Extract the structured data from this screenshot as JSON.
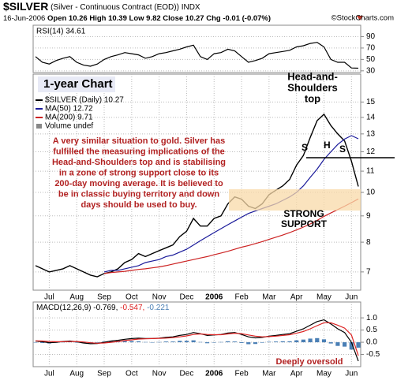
{
  "header": {
    "title": "$SILVER",
    "subtitle": "(Silver - Continuous Contract (EOD)) INDX",
    "date": "16-Jun-2006",
    "open": "Open 10.26",
    "high": "High 10.39",
    "low": "Low 9.82",
    "close": "Close 10.27",
    "change": "Chg -0.01 (-0.07%)",
    "source": "©StockCharts.com"
  },
  "chart_data": [
    {
      "type": "line",
      "title": "RSI(14) 34.61",
      "ylim": [
        27,
        110
      ],
      "yticks": [
        30,
        50,
        70,
        90
      ],
      "grid": true,
      "series": [
        {
          "name": "RSI(14)",
          "color": "#000000",
          "values": [
            55,
            45,
            42,
            48,
            52,
            55,
            45,
            40,
            38,
            42,
            50,
            55,
            58,
            62,
            60,
            58,
            52,
            55,
            60,
            62,
            65,
            68,
            72,
            75,
            55,
            50,
            60,
            62,
            68,
            65,
            55,
            45,
            48,
            52,
            60,
            62,
            64,
            66,
            72,
            74,
            78,
            80,
            72,
            50,
            45,
            45,
            35,
            34.61
          ]
        }
      ]
    },
    {
      "type": "line",
      "log": true,
      "ylim": [
        6.45,
        17
      ],
      "yticks": [
        7,
        8,
        9,
        10,
        11,
        12,
        13,
        14,
        15
      ],
      "grid": true,
      "legend": "upper left",
      "categories": [
        null,
        null,
        "Jul",
        null,
        null,
        null,
        "Aug",
        null,
        null,
        null,
        "Sep",
        null,
        null,
        null,
        "Oct",
        null,
        null,
        null,
        "Nov",
        null,
        null,
        null,
        "Dec",
        null,
        null,
        null,
        "2006",
        null,
        null,
        null,
        "Feb",
        null,
        null,
        null,
        "Mar",
        null,
        null,
        null,
        "Apr",
        null,
        null,
        null,
        "May",
        null,
        null,
        null,
        "Jun",
        null
      ],
      "series": [
        {
          "name": "$SILVER (Daily) 10.27",
          "color": "#000000",
          "values": [
            7.2,
            7.1,
            7.0,
            7.05,
            7.1,
            7.2,
            7.1,
            7.0,
            6.9,
            6.85,
            6.95,
            7.0,
            7.1,
            7.3,
            7.4,
            7.6,
            7.5,
            7.6,
            7.7,
            7.8,
            7.9,
            8.2,
            8.4,
            8.9,
            8.6,
            8.6,
            8.9,
            9.0,
            9.5,
            9.8,
            9.7,
            9.4,
            9.3,
            9.5,
            9.9,
            10.1,
            10.3,
            10.6,
            11.3,
            11.8,
            12.8,
            13.8,
            14.2,
            13.5,
            13.0,
            12.6,
            11.5,
            10.27
          ]
        },
        {
          "name": "MA(50) 12.72",
          "color": "#1a1a9a",
          "values": [
            null,
            null,
            null,
            null,
            null,
            null,
            null,
            null,
            null,
            null,
            7.0,
            7.05,
            7.05,
            7.1,
            7.15,
            7.2,
            7.3,
            7.35,
            7.4,
            7.5,
            7.55,
            7.65,
            7.75,
            7.9,
            8.05,
            8.2,
            8.35,
            8.5,
            8.65,
            8.8,
            8.95,
            9.1,
            9.2,
            9.3,
            9.4,
            9.5,
            9.65,
            9.8,
            10.0,
            10.3,
            10.7,
            11.1,
            11.6,
            12.0,
            12.4,
            12.7,
            12.9,
            12.72
          ]
        },
        {
          "name": "MA(200) 9.71",
          "color": "#cc2222",
          "values": [
            null,
            null,
            null,
            null,
            null,
            null,
            null,
            null,
            null,
            null,
            6.95,
            6.98,
            7.0,
            7.02,
            7.05,
            7.08,
            7.1,
            7.13,
            7.16,
            7.2,
            7.25,
            7.3,
            7.35,
            7.4,
            7.45,
            7.5,
            7.56,
            7.62,
            7.68,
            7.75,
            7.82,
            7.88,
            7.95,
            8.02,
            8.1,
            8.18,
            8.26,
            8.35,
            8.45,
            8.56,
            8.68,
            8.82,
            8.98,
            9.12,
            9.26,
            9.4,
            9.55,
            9.71
          ]
        }
      ],
      "legend_extra": "Volume undef",
      "annotations": [
        "1-year Chart",
        "Head-and-",
        "Shoulders",
        "top",
        "S",
        "H",
        "S",
        "A very similar situation to gold. Silver has",
        "fulfilled the measuring implications of the",
        "Head-and-Shoulders top and is stabilising",
        "in a zone of strong support close to its",
        "200-day moving average. It is believed to",
        "be in classic buying territory and down",
        "days should be used to buy.",
        "STRONG",
        "SUPPORT"
      ]
    },
    {
      "type": "line",
      "title": "MACD(12,26,9)",
      "ylim": [
        -1,
        1.65
      ],
      "yticks": [
        {
          "value": 1,
          "label": "1.0"
        },
        {
          "value": 0.5,
          "label": "0.5"
        },
        {
          "value": 0,
          "label": "0.0"
        },
        {
          "value": -0.5,
          "label": "-0.5"
        }
      ],
      "grid": true,
      "categories": [
        null,
        null,
        "Jul",
        null,
        null,
        null,
        "Aug",
        null,
        null,
        null,
        "Sep",
        null,
        null,
        null,
        "Oct",
        null,
        null,
        null,
        "Nov",
        null,
        null,
        null,
        "Dec",
        null,
        null,
        null,
        "2006",
        null,
        null,
        null,
        "Feb",
        null,
        null,
        null,
        "Mar",
        null,
        null,
        null,
        "Apr",
        null,
        null,
        null,
        "May",
        null,
        null,
        null,
        "Jun",
        null
      ],
      "series": [
        {
          "name": "-0.221",
          "type": "bar",
          "color": "#4a7fb5",
          "values": [
            -0.01,
            -0.03,
            -0.05,
            -0.02,
            0.01,
            0.02,
            -0.01,
            -0.04,
            -0.04,
            -0.01,
            0.03,
            0.05,
            0.05,
            0.05,
            0.05,
            0.04,
            0.01,
            0,
            0.01,
            0.03,
            0.03,
            0.06,
            0.06,
            0.08,
            0.01,
            -0.04,
            -0.01,
            0.01,
            0.04,
            0.03,
            -0.03,
            -0.08,
            -0.07,
            -0.02,
            0.02,
            0.03,
            0.04,
            0.04,
            0.08,
            0.11,
            0.15,
            0.17,
            0.12,
            -0.05,
            -0.15,
            -0.18,
            -0.3,
            -0.221
          ]
        },
        {
          "name": "-0.769,",
          "color": "#000000",
          "values": [
            0.05,
            0.02,
            -0.02,
            0.0,
            0.03,
            0.05,
            0.02,
            -0.03,
            -0.06,
            -0.05,
            0.0,
            0.05,
            0.08,
            0.12,
            0.15,
            0.17,
            0.15,
            0.15,
            0.17,
            0.2,
            0.22,
            0.28,
            0.32,
            0.4,
            0.35,
            0.28,
            0.3,
            0.32,
            0.38,
            0.4,
            0.32,
            0.22,
            0.18,
            0.2,
            0.25,
            0.28,
            0.32,
            0.35,
            0.45,
            0.55,
            0.7,
            0.85,
            0.92,
            0.75,
            0.55,
            0.4,
            0.0,
            -0.769
          ]
        },
        {
          "name": "-0.547,",
          "color": "#dd2222",
          "values": [
            0.06,
            0.05,
            0.03,
            0.02,
            0.02,
            0.03,
            0.03,
            0.01,
            -0.02,
            -0.04,
            -0.03,
            0.0,
            0.03,
            0.07,
            0.1,
            0.13,
            0.14,
            0.15,
            0.16,
            0.17,
            0.19,
            0.22,
            0.26,
            0.32,
            0.34,
            0.32,
            0.31,
            0.31,
            0.34,
            0.37,
            0.35,
            0.3,
            0.25,
            0.22,
            0.23,
            0.25,
            0.28,
            0.31,
            0.37,
            0.44,
            0.55,
            0.68,
            0.8,
            0.8,
            0.7,
            0.58,
            0.3,
            -0.547
          ]
        }
      ],
      "annotations": [
        "Deeply oversold"
      ]
    }
  ]
}
